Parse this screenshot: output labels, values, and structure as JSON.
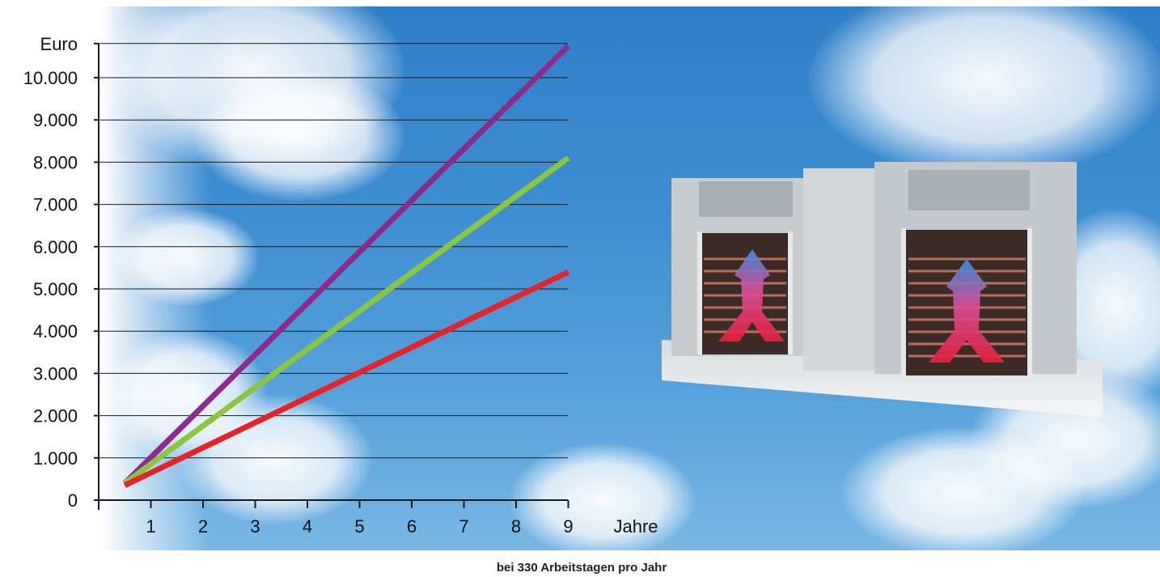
{
  "chart_data": {
    "type": "line",
    "ylabel": "Euro",
    "xlabel": "Jahre",
    "ytick_labels": [
      "0",
      "1.000",
      "2.000",
      "3.000",
      "4.000",
      "5.000",
      "6.000",
      "7.000",
      "8.000",
      "9.000",
      "10.000"
    ],
    "xtick_labels": [
      "1",
      "2",
      "3",
      "4",
      "5",
      "6",
      "7",
      "8",
      "9"
    ],
    "ylim": [
      0,
      11000
    ],
    "xlim": [
      0,
      9
    ],
    "grid": true,
    "series": [
      {
        "color": "#8e2a8c",
        "x": [
          0.5,
          9
        ],
        "y": [
          400,
          10750
        ]
      },
      {
        "color": "#8cc63f",
        "x": [
          0.5,
          9
        ],
        "y": [
          400,
          8100
        ]
      },
      {
        "color": "#e52329",
        "x": [
          0.5,
          9
        ],
        "y": [
          350,
          5400
        ]
      }
    ]
  },
  "caption": "bei 330 Arbeitstagen pro Jahr",
  "illustration": {
    "icon": "air-handling-unit-heat-exchanger",
    "arrow_colors": [
      "#3a8fe0",
      "#e8203a"
    ]
  }
}
